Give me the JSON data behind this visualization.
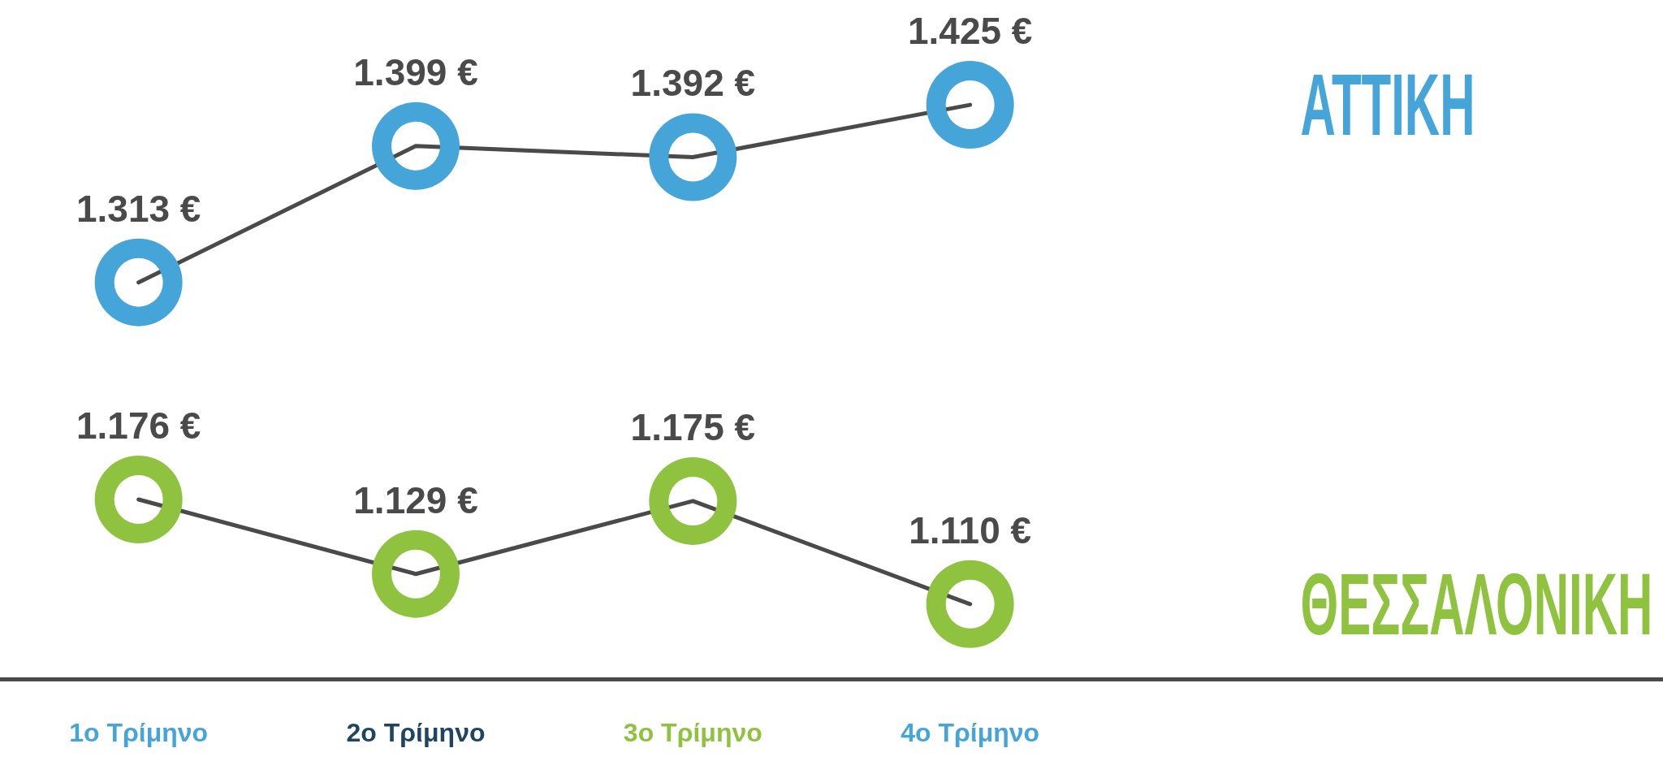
{
  "chart_data": {
    "type": "line",
    "categories": [
      "1ο Τρίμηνο",
      "2ο Τρίμηνο",
      "3ο Τρίμηνο",
      "4ο Τρίμηνο"
    ],
    "series": [
      {
        "color": "#4a4a4a",
        "marker": "none",
        "values": [
          1313,
          1399,
          1392,
          1425
        ]
      },
      {
        "type": "scatter",
        "name": "ΑΤΤΙΚΗ",
        "color": "#45a5d9",
        "values": [
          1313,
          1399,
          1392,
          1425
        ],
        "value_labels": [
          "1.313 €",
          "1.399 €",
          "1.392 €",
          "1.425 €"
        ]
      },
      {
        "color": "#4a4a4a",
        "marker": "none",
        "values": [
          1176,
          1129,
          1175,
          1110
        ]
      },
      {
        "type": "scatter",
        "name": "ΘΕΣΣΑΛΟΝΙΚΗ",
        "color": "#8fc23f",
        "values": [
          1176,
          1129,
          1175,
          1110
        ],
        "value_labels": [
          "1.176 €",
          "1.129 €",
          "1.175 €",
          "1.110 €"
        ]
      }
    ],
    "marker": "circle",
    "line_style": "solid",
    "tick_labels": "x"
  }
}
